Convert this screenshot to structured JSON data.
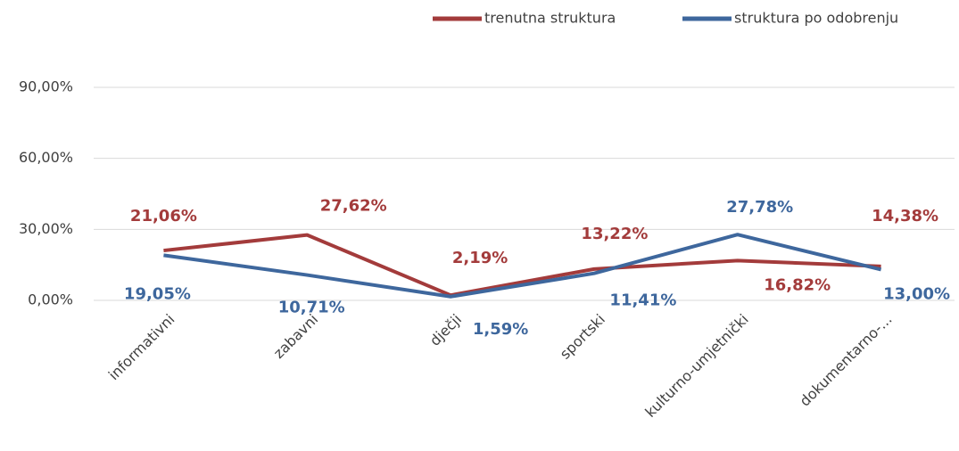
{
  "chart_data": {
    "type": "line",
    "categories": [
      "informativni",
      "zabavni",
      "dječji",
      "sportski",
      "kulturno-umjetnički",
      "dokumentarno-..."
    ],
    "series": [
      {
        "name": "trenutna struktura",
        "color": "#a33b3b",
        "values": [
          21.06,
          27.62,
          2.19,
          13.22,
          16.82,
          14.38
        ],
        "value_labels": [
          "21,06%",
          "27,62%",
          "2,19%",
          "13,22%",
          "16,82%",
          "14,38%"
        ]
      },
      {
        "name": "struktura po odobrenju",
        "color": "#3e679d",
        "values": [
          19.05,
          10.71,
          1.59,
          11.41,
          27.78,
          13.0
        ],
        "value_labels": [
          "19,05%",
          "10,71%",
          "1,59%",
          "11,41%",
          "27,78%",
          "13,00%"
        ]
      }
    ],
    "ylim": [
      0,
      90
    ],
    "yticks": [
      {
        "value": 0,
        "label": "0,00%"
      },
      {
        "value": 30,
        "label": "30,00%"
      },
      {
        "value": 60,
        "label": "60,00%"
      },
      {
        "value": 90,
        "label": "90,00%"
      }
    ],
    "grid": true,
    "legend": "top"
  }
}
